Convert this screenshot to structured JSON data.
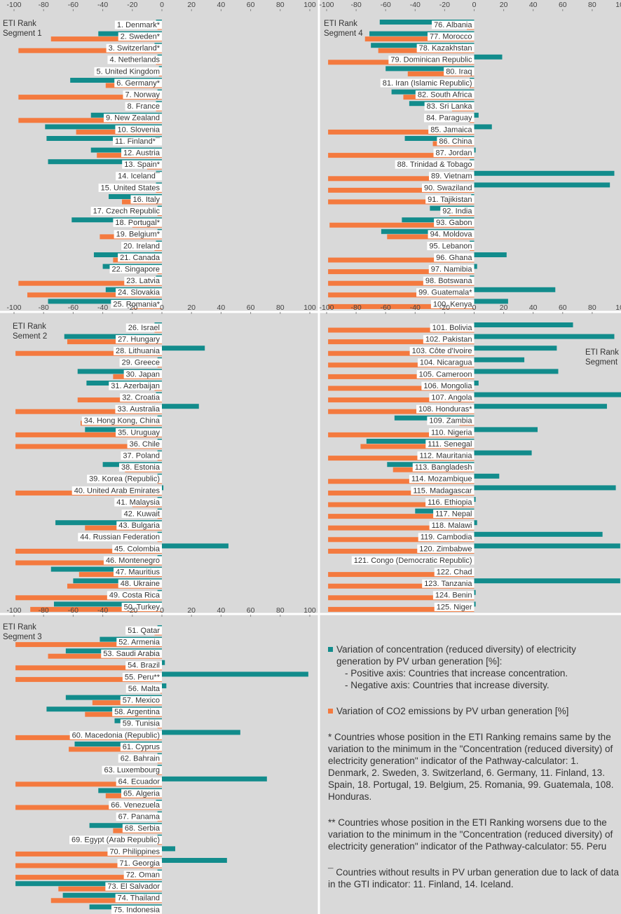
{
  "chart_data": [
    {
      "type": "bar",
      "title": "ETI Rank",
      "subtitle": "Segment 1",
      "categories": [
        "1. Denmark*",
        "2. Sweden*",
        "3. Switzerland*",
        "4. Netherlands",
        "5. United Kingdom",
        "6. Germany*",
        "7. Norway",
        "8. France",
        "9. New Zealand",
        "10. Slovenia",
        "11. Finland*¯",
        "12. Austria",
        "13. Spain*",
        "14. Iceland¯",
        "15. United States",
        "16. Italy",
        "17. Czech Republic",
        "18. Portugal*",
        "19. Belgium*",
        "20. Ireland",
        "21. Canada",
        "22. Singapore",
        "23. Latvia",
        "24. Slovakia",
        "25. Romania*"
      ],
      "series": [
        {
          "name": "Variation of concentration (reduced diversity) of electricity generation by PV urban generation [%]:",
          "color": "#128c8c",
          "values": [
            -4,
            -43,
            -5,
            -3,
            -2,
            -62,
            -3,
            -4,
            -48,
            -79,
            -78,
            -48,
            -77,
            -4,
            -4,
            -36,
            -3,
            -61,
            -3,
            -4,
            -46,
            -40,
            -4,
            -38,
            -77
          ]
        },
        {
          "name": "Variation of CO2 emissions by PV urban generation [%]",
          "color": "#f47a3f",
          "values": [
            -3,
            -75,
            -97,
            -4,
            -2,
            -38,
            -97,
            -4,
            -97,
            -58,
            0,
            -44,
            -10,
            0,
            -4,
            -27,
            -3,
            -20,
            -42,
            -5,
            -33,
            -3,
            -97,
            -91,
            -20
          ]
        }
      ],
      "xlim": [
        -100,
        100
      ],
      "xticks": [
        -100,
        -80,
        -60,
        -40,
        -20,
        0,
        20,
        40,
        60,
        80,
        100
      ]
    },
    {
      "type": "bar",
      "title": "ETI Rank",
      "subtitle": "Sement 2",
      "categories": [
        "26. Israel",
        "27. Hungary",
        "28. Lithuania",
        "29. Greece",
        "30. Japan",
        "31. Azerbaijan",
        "32. Croatia",
        "33. Australia",
        "34. Hong Kong, China",
        "35. Uruguay",
        "36. Chile",
        "37. Poland",
        "38. Estonia",
        "39. Korea (Republic)",
        "40. United Arab Emirates",
        "41. Malaysia",
        "42. Kuwait",
        "43. Bulgaria",
        "44. Russian Federation",
        "45. Colombia",
        "46. Montenegro",
        "47. Mauritius",
        "48. Ukraine",
        "49. Costa Rica",
        "50. Turkey"
      ],
      "series": [
        {
          "color": "#128c8c",
          "values": [
            -5,
            -66,
            29,
            -3,
            -57,
            -51,
            -4,
            25,
            -3,
            -52,
            -3,
            -3,
            -40,
            -3,
            1,
            -3,
            -3,
            -72,
            -3,
            45,
            -3,
            -75,
            -60,
            -3,
            -73
          ]
        },
        {
          "color": "#f47a3f",
          "values": [
            -5,
            -64,
            -99,
            -3,
            -33,
            -5,
            -57,
            -99,
            -55,
            -99,
            -99,
            -3,
            -25,
            -3,
            -99,
            -20,
            -3,
            -52,
            -3,
            -99,
            -99,
            -56,
            -64,
            -99,
            -89
          ]
        }
      ],
      "xlim": [
        -100,
        100
      ],
      "xticks": [
        -100,
        -80,
        -60,
        -40,
        -20,
        0,
        20,
        40,
        60,
        80,
        100
      ]
    },
    {
      "type": "bar",
      "title": "ETI Rank",
      "subtitle": "Segment 3",
      "categories": [
        "51. Qatar",
        "52. Armenia",
        "53. Saudi Arabia",
        "54. Brazil",
        "55. Peru**",
        "56. Malta",
        "57. Mexico",
        "58. Argentina",
        "59. Tunisia",
        "60. Macedonia (Republic)",
        "61. Cyprus",
        "62. Bahrain",
        "63. Luxembourg",
        "64. Ecuador",
        "65. Algeria",
        "66. Venezuela",
        "67. Panama",
        "68. Serbia",
        "69. Egypt (Arab Republic)",
        "70. Philippines",
        "71. Georgia",
        "72. Oman",
        "73. El Salvador",
        "74. Thailand",
        "75. Indonesia"
      ],
      "series": [
        {
          "color": "#128c8c",
          "values": [
            -3,
            -42,
            -65,
            2,
            99,
            3,
            -65,
            -78,
            -32,
            53,
            -59,
            -3,
            -3,
            71,
            -43,
            -4,
            -3,
            -49,
            -3,
            9,
            44,
            -3,
            -99,
            -67,
            -49
          ]
        },
        {
          "color": "#f47a3f",
          "values": [
            -5,
            -99,
            -77,
            -99,
            -99,
            -1,
            -47,
            -52,
            -3,
            -99,
            -63,
            -3,
            -3,
            -99,
            -38,
            -99,
            -3,
            -33,
            -3,
            -99,
            -99,
            -99,
            -70,
            -75,
            -5
          ]
        }
      ],
      "xlim": [
        -100,
        100
      ],
      "xticks": [
        -100,
        -80,
        -60,
        -40,
        -20,
        0,
        20,
        40,
        60,
        80,
        100
      ]
    },
    {
      "type": "bar",
      "title": "ETI Rank",
      "subtitle": "Segment 4",
      "categories": [
        "76. Albania",
        "77. Morocco",
        "78. Kazakhstan",
        "79. Dominican Republic",
        "80. Iraq",
        "81. Iran (Islamic Republic)",
        "82. South Africa",
        "83. Sri Lanka",
        "84. Paraguay",
        "85. Jamaica",
        "86. China",
        "87. Jordan",
        "88. Trinidad & Tobago",
        "89. Vietnam",
        "90. Swaziland",
        "91. Tajikistan",
        "92. India",
        "93. Gabon",
        "94. Moldova",
        "95. Lebanon",
        "96. Ghana",
        "97. Namibia",
        "98. Botswana",
        "99. Guatemala*",
        "100. Kenya"
      ],
      "series": [
        {
          "color": "#128c8c",
          "values": [
            -64,
            -71,
            -70,
            19,
            -60,
            -3,
            -56,
            -44,
            3,
            12,
            -47,
            1,
            -3,
            95,
            92,
            -2,
            -30,
            -49,
            -63,
            -3,
            22,
            2,
            -3,
            55,
            23
          ]
        },
        {
          "color": "#f47a3f",
          "values": [
            -5,
            -74,
            -65,
            -99,
            -45,
            -3,
            -48,
            -15,
            -3,
            -99,
            -28,
            -99,
            -3,
            -99,
            -99,
            -99,
            -17,
            -98,
            -59,
            -3,
            -99,
            -99,
            -99,
            -99,
            -99
          ]
        }
      ],
      "xlim": [
        -100,
        100
      ],
      "xticks": [
        -100,
        -80,
        -60,
        -40,
        -20,
        0,
        20,
        40,
        60,
        80,
        100
      ]
    },
    {
      "type": "bar",
      "title": "ETI Rank",
      "subtitle": "Segment",
      "categories": [
        "101. Bolivia",
        "102. Pakistan",
        "103. Côte d'Ivoire",
        "104. Nicaragua",
        "105. Cameroon",
        "106. Mongolia",
        "107. Angola",
        "108. Honduras*",
        "109. Zambia",
        "110. Nigeria",
        "111. Senegal",
        "112. Mauritania",
        "113. Bangladesh",
        "114. Mozambique",
        "115. Madagascar",
        "116. Ethiopia",
        "117. Nepal",
        "118. Malawi",
        "119. Cambodia",
        "120. Zimbabwe",
        "121. Congo (Democratic Republic)",
        "122. Chad",
        "123. Tanzania",
        "124. Benin",
        "125. Niger"
      ],
      "series": [
        {
          "color": "#128c8c",
          "values": [
            67,
            95,
            56,
            34,
            57,
            3,
            100,
            90,
            -54,
            43,
            -73,
            39,
            -59,
            17,
            96,
            1,
            -40,
            2,
            87,
            99,
            0,
            0,
            99,
            1,
            1
          ]
        },
        {
          "color": "#f47a3f",
          "values": [
            -99,
            -99,
            -99,
            -99,
            -99,
            -99,
            -99,
            -99,
            -10,
            -99,
            -77,
            -99,
            -55,
            -99,
            -99,
            -99,
            -99,
            -99,
            -99,
            -99,
            0,
            -99,
            -99,
            -99,
            -99
          ]
        }
      ],
      "xlim": [
        -100,
        100
      ],
      "xticks": [
        -100,
        -80,
        -60,
        -40,
        -20,
        0,
        20,
        40,
        60,
        80,
        100
      ]
    }
  ],
  "legend_details": [
    "- Positive axis: Countries that increase concentration.",
    "- Negative axis: Countries that increase diversity."
  ],
  "footnotes": [
    "* Countries whose position in the ETI Ranking remains same by the variation to the minimum in the \"Concentration (reduced diversity) of electricity generation\" indicator of the Pathway-calculator: 1. Denmark, 2. Sweden, 3. Switzerland, 6. Germany, 11. Finland, 13. Spain, 18. Portugal, 19. Belgium, 25. Romania, 99. Guatemala, 108. Honduras.",
    "** Countries whose position in the ETI Ranking worsens due to the variation to the minimum in the \"Concentration (reduced diversity) of electricity generation\" indicator of the Pathway-calculator: 55. Peru",
    "¯ Countries without results in PV urban generation due to lack of data in the GTI indicator: 11. Finland, 14. Iceland."
  ]
}
